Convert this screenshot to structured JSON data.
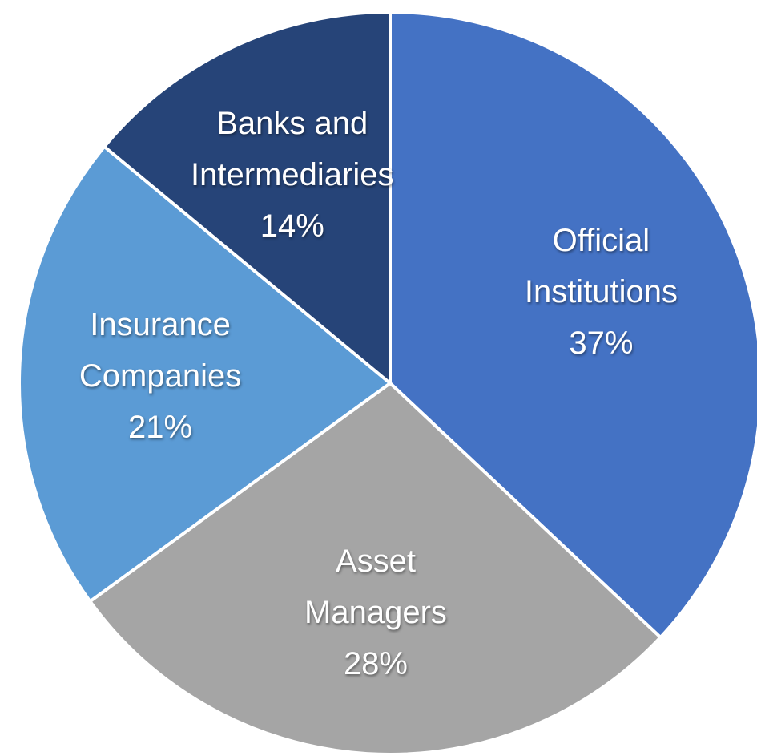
{
  "chart_data": {
    "type": "pie",
    "categories": [
      "Official\nInstitutions",
      "Asset\nManagers",
      "Insurance\nCompanies",
      "Banks and\nIntermediaries"
    ],
    "values": [
      37,
      28,
      21,
      14
    ],
    "value_labels": [
      "37%",
      "28%",
      "21%",
      "14%"
    ],
    "colors": [
      "#4472c4",
      "#a5a5a5",
      "#5b9bd5",
      "#264478"
    ]
  }
}
